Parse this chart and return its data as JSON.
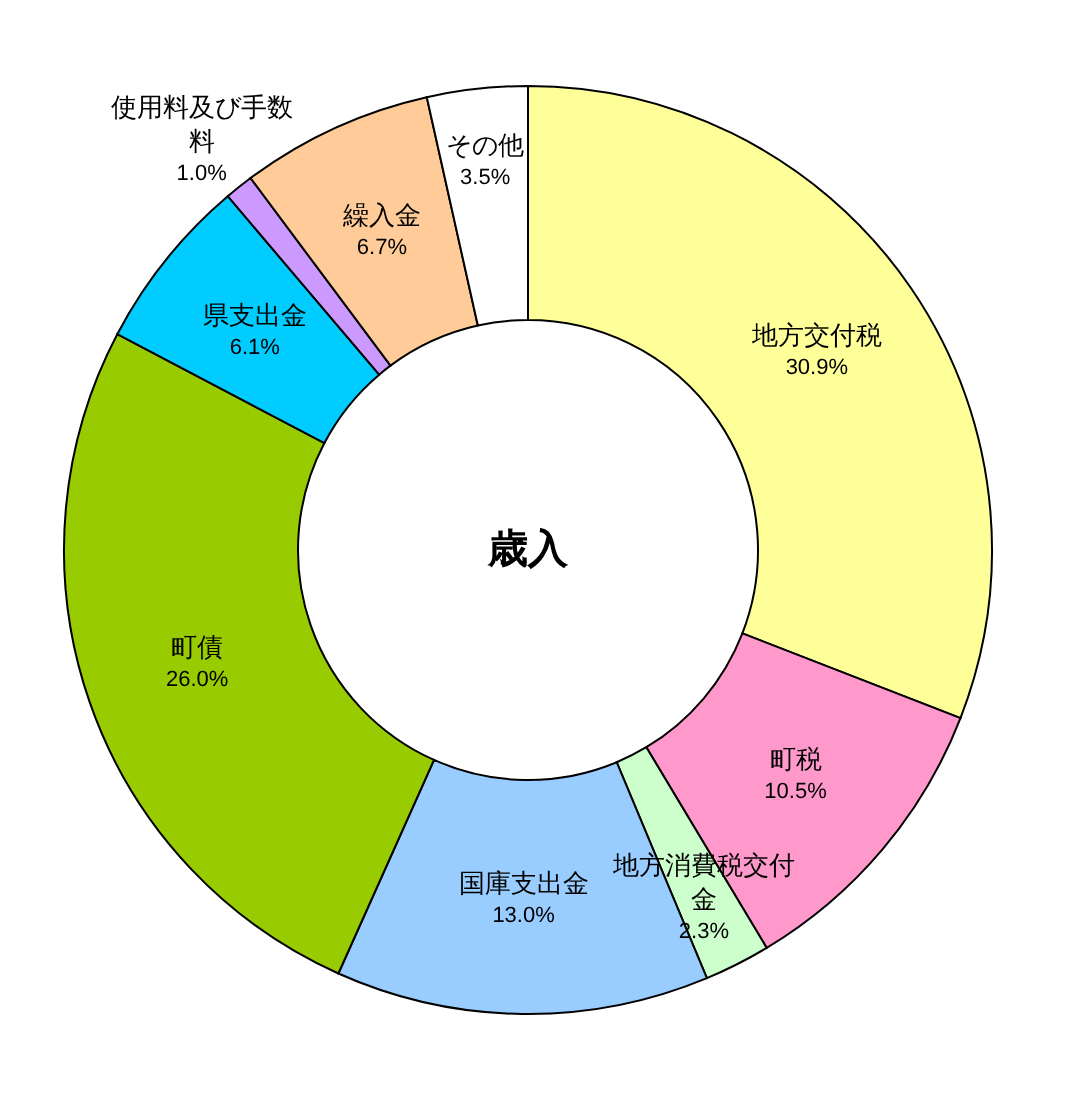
{
  "chart_data": {
    "type": "donut",
    "title": "歳入",
    "categories": [
      "地方交付税",
      "町税",
      "地方消費税交付金",
      "国庫支出金",
      "町債",
      "県支出金",
      "使用料及び手数料",
      "繰入金",
      "その他"
    ],
    "values": [
      30.9,
      10.5,
      2.3,
      13.0,
      26.0,
      6.1,
      1.0,
      6.7,
      3.5
    ],
    "value_labels": [
      "30.9%",
      "10.5%",
      "2.3%",
      "13.0%",
      "26.0%",
      "6.1%",
      "1.0%",
      "6.7%",
      "3.5%"
    ],
    "colors": [
      "#ffff99",
      "#ff99cc",
      "#ccffcc",
      "#99ccff",
      "#99cc00",
      "#00ccff",
      "#cc99ff",
      "#ffcc99",
      "#ffffff"
    ],
    "legend": false
  }
}
